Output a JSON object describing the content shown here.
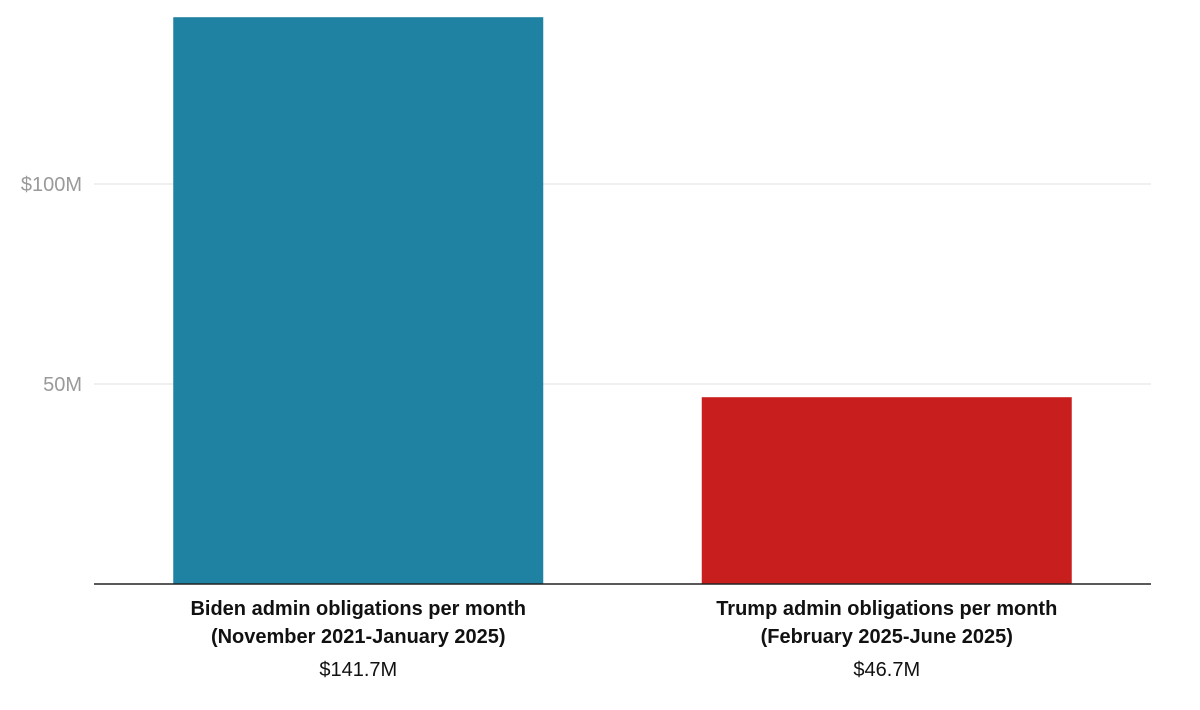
{
  "chart_data": {
    "type": "bar",
    "title": "",
    "xlabel": "",
    "ylabel": "",
    "ylim": [
      0,
      143
    ],
    "yticks": [
      {
        "value": 50,
        "label": "50M"
      },
      {
        "value": 100,
        "label": "$100M"
      }
    ],
    "grid": true,
    "categories": [
      {
        "line1": "Biden admin obligations per month",
        "line2": "(November 2021-January 2025)",
        "value_label": "$141.7M"
      },
      {
        "line1": "Trump admin obligations per month",
        "line2": "(February 2025-June 2025)",
        "value_label": "$46.7M"
      }
    ],
    "values": [
      141.7,
      46.7
    ],
    "colors": [
      "#1f82a2",
      "#c81e1e"
    ]
  }
}
